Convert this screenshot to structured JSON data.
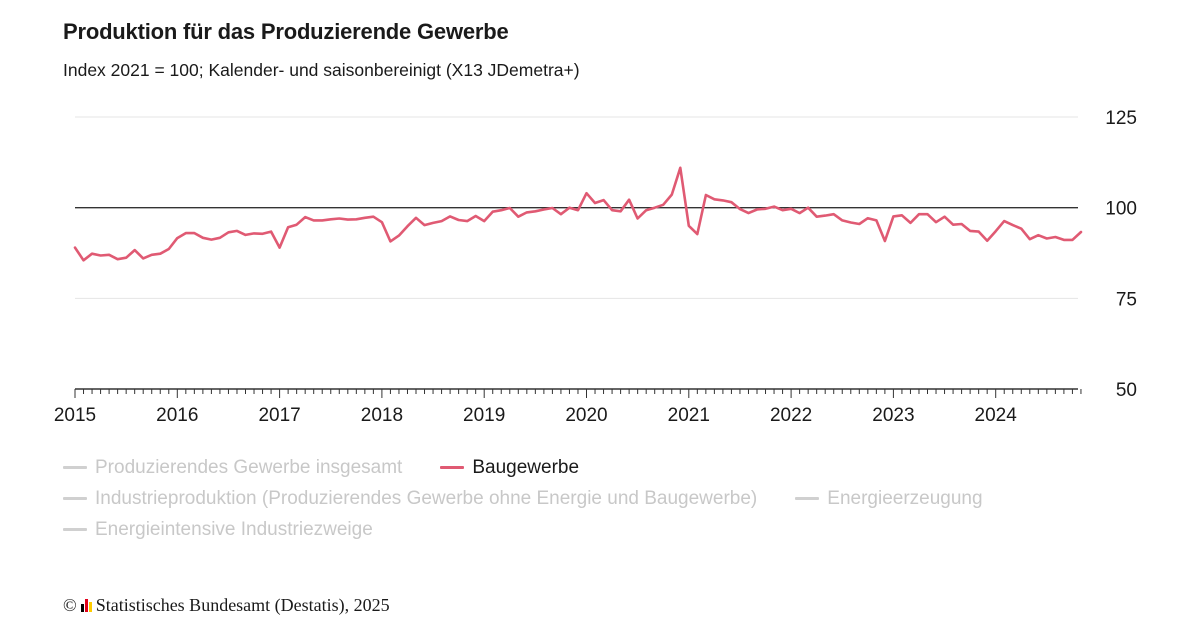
{
  "title": "Produktion für das Produzierende Gewerbe",
  "subtitle": "Index 2021 = 100; Kalender- und saisonbereinigt (X13 JDemetra+)",
  "legend": [
    [
      {
        "label": "Produzierendes Gewerbe insgesamt",
        "active": false
      },
      {
        "label": "Baugewerbe",
        "active": true
      }
    ],
    [
      {
        "label": "Industrieproduktion (Produzierendes Gewerbe ohne Energie und Baugewerbe)",
        "active": false
      },
      {
        "label": "Energieerzeugung",
        "active": false
      }
    ],
    [
      {
        "label": "Energieintensive Industriezweige",
        "active": false
      }
    ]
  ],
  "footer": {
    "copyright": "©",
    "source": "Statistisches Bundesamt (Destatis), 2025",
    "logo_colors": [
      "#000000",
      "#e2001a",
      "#ffcc00"
    ]
  },
  "chart_data": {
    "type": "line",
    "title": "Produktion für das Produzierende Gewerbe",
    "subtitle": "Index 2021 = 100; Kalender- und saisonbereinigt (X13 JDemetra+)",
    "x_start": "2015-01",
    "x_ticks": [
      "2015",
      "2016",
      "2017",
      "2018",
      "2019",
      "2020",
      "2021",
      "2022",
      "2023",
      "2024"
    ],
    "ylim": [
      50,
      125
    ],
    "yticks": [
      50,
      75,
      100,
      125
    ],
    "reference_line": 100,
    "series": [
      {
        "name": "Baugewerbe",
        "color": "#e05a73",
        "values": [
          89.0,
          85.5,
          87.3,
          86.8,
          87.0,
          85.8,
          86.2,
          88.3,
          86.0,
          87.0,
          87.3,
          88.6,
          91.6,
          93.0,
          93.0,
          91.7,
          91.2,
          91.7,
          93.2,
          93.6,
          92.5,
          92.9,
          92.8,
          93.4,
          89.0,
          94.6,
          95.3,
          97.4,
          96.5,
          96.5,
          96.8,
          97.0,
          96.7,
          96.8,
          97.2,
          97.5,
          96.0,
          90.7,
          92.3,
          94.9,
          97.2,
          95.2,
          95.8,
          96.3,
          97.6,
          96.6,
          96.3,
          97.7,
          96.3,
          98.9,
          99.3,
          99.9,
          97.5,
          98.7,
          99.0,
          99.5,
          99.9,
          98.2,
          100.0,
          99.3,
          104.0,
          101.3,
          102.1,
          99.3,
          99.0,
          102.2,
          97.0,
          99.3,
          100.0,
          100.8,
          103.6,
          111.0,
          95.0,
          92.7,
          103.5,
          102.3,
          102.0,
          101.5,
          99.6,
          98.5,
          99.5,
          99.7,
          100.3,
          99.3,
          99.7,
          98.5,
          100.0,
          97.5,
          97.8,
          98.2,
          96.5,
          95.9,
          95.5,
          97.1,
          96.5,
          90.8,
          97.6,
          97.9,
          95.8,
          98.2,
          98.2,
          96.0,
          97.5,
          95.3,
          95.5,
          93.6,
          93.4,
          90.9,
          93.5,
          96.3,
          95.2,
          94.2,
          91.3,
          92.4,
          91.5,
          91.9,
          91.1,
          91.1,
          93.3
        ]
      }
    ],
    "grid": true,
    "legend_position": "bottom"
  }
}
